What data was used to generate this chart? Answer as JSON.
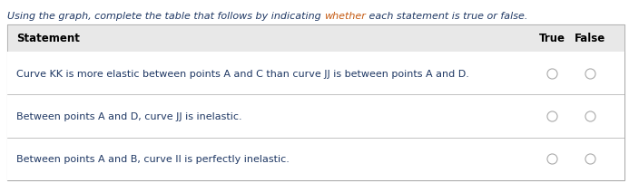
{
  "title_parts": [
    {
      "text": "Using the graph, complete the table that follows by indicating ",
      "color": "#1f3864"
    },
    {
      "text": "whether",
      "color": "#c55a11"
    },
    {
      "text": " each statement is true or false.",
      "color": "#1f3864"
    }
  ],
  "title_fontsize": 8.0,
  "col_header_statement": "Statement",
  "col_header_true": "True",
  "col_header_false": "False",
  "col_header_fontsize": 8.5,
  "col_header_color": "#000000",
  "rows": [
    "Curve KK is more elastic between points A and C than curve JJ is between points A and D.",
    "Between points A and D, curve JJ is inelastic.",
    "Between points A and B, curve II is perfectly inelastic."
  ],
  "row_text_color": "#1f3864",
  "row_fontsize": 8.0,
  "header_bg": "#e8e8e8",
  "row_bg": "#ffffff",
  "border_color": "#aaaaaa",
  "radio_edge_color": "#aaaaaa",
  "background_color": "#ffffff",
  "fig_width": 6.93,
  "fig_height": 2.03,
  "dpi": 100
}
